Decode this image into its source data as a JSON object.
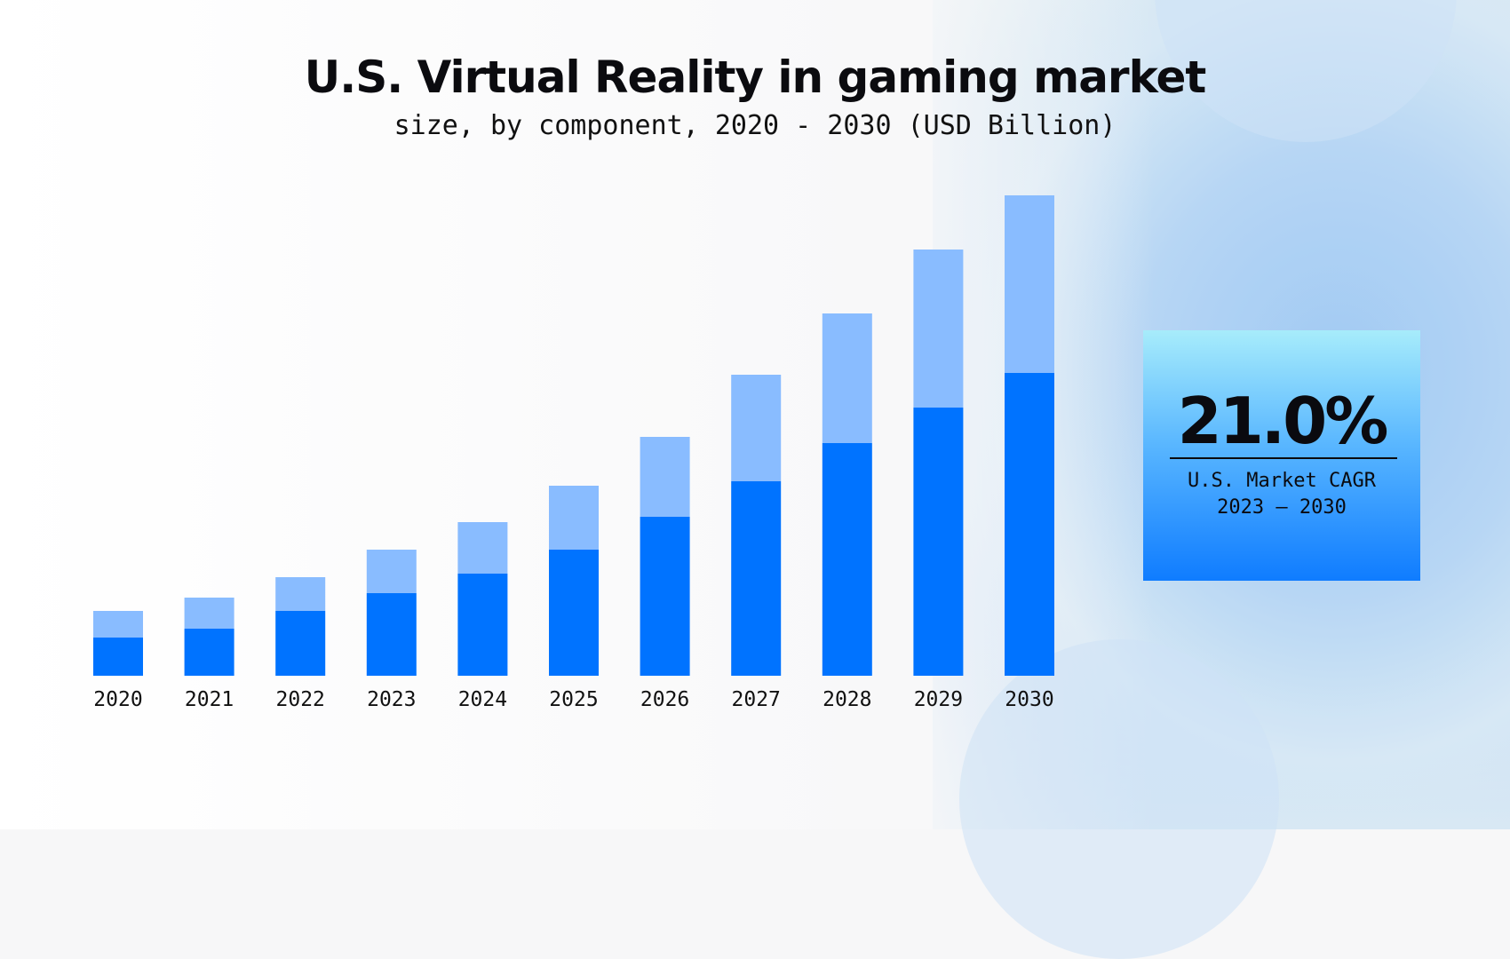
{
  "chart_data": {
    "type": "bar",
    "stacked": true,
    "title": "U.S. Virtual Reality in gaming market",
    "subtitle": "size, by component, 2020 - 2030 (USD Billion)",
    "categories": [
      "2020",
      "2021",
      "2022",
      "2023",
      "2024",
      "2025",
      "2026",
      "2027",
      "2028",
      "2029",
      "2030"
    ],
    "series": [
      {
        "values": [
          0.43,
          0.53,
          0.73,
          0.93,
          1.15,
          1.42,
          1.79,
          2.19,
          2.62,
          3.02,
          3.41
        ],
        "color": "#0073ff"
      },
      {
        "values": [
          0.3,
          0.35,
          0.38,
          0.49,
          0.58,
          0.72,
          0.9,
          1.2,
          1.46,
          1.78,
          2.0
        ],
        "color": "#89bcff"
      }
    ],
    "ylim": [
      0,
      5.5
    ],
    "grid": false,
    "legend": "none"
  },
  "callout": {
    "value": "21.0%",
    "label_line1": "U.S. Market CAGR",
    "label_line2": "2023 – 2030"
  }
}
